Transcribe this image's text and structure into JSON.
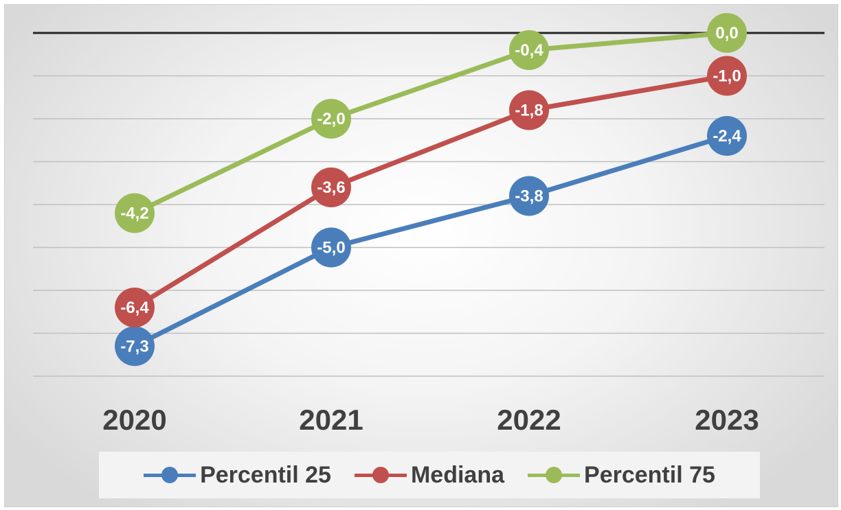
{
  "chart_data": {
    "type": "line",
    "title": "",
    "xlabel": "",
    "ylabel": "",
    "categories": [
      "2020",
      "2021",
      "2022",
      "2023"
    ],
    "series": [
      {
        "name": "Percentil 25",
        "color": "#4a7ebb",
        "values": [
          -7.3,
          -5.0,
          -3.8,
          -2.4
        ],
        "labels": [
          "-7,3",
          "-5,0",
          "-3,8",
          "-2,4"
        ]
      },
      {
        "name": "Mediana",
        "color": "#c0504d",
        "values": [
          -6.4,
          -3.6,
          -1.8,
          -1.0
        ],
        "labels": [
          "-6,4",
          "-3,6",
          "-1,8",
          "-1,0"
        ]
      },
      {
        "name": "Percentil 75",
        "color": "#9bbb59",
        "values": [
          -4.2,
          -2.0,
          -0.4,
          0.0
        ],
        "labels": [
          "-4,2",
          "-2,0",
          "-0,4",
          "0,0"
        ]
      }
    ],
    "ylim": [
      -8,
      0
    ],
    "gridlines": true,
    "legend": "bottom",
    "zero_line_color": "#262626",
    "gridline_color": "#bfbfbf"
  }
}
